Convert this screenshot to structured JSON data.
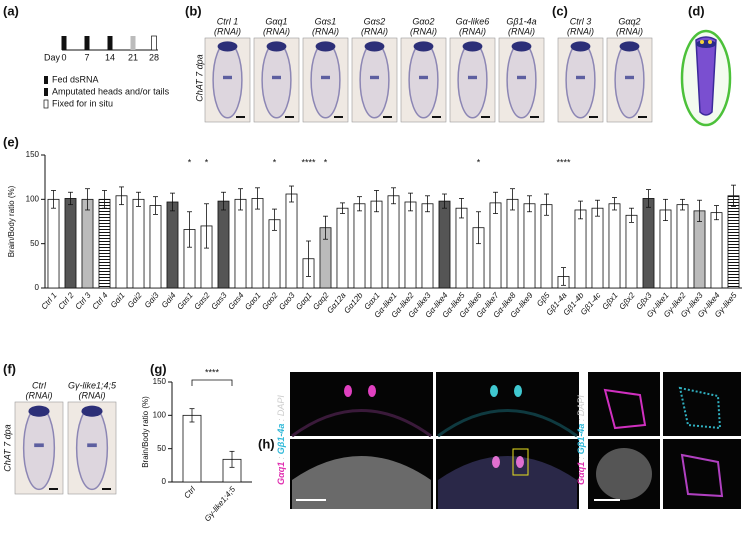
{
  "panel_labels": [
    "(a)",
    "(b)",
    "(c)",
    "(d)",
    "(e)",
    "(f)",
    "(g)",
    "(h)"
  ],
  "timeline": {
    "axis_label": "Day",
    "days": [
      "0",
      "7",
      "14",
      "21",
      "28"
    ],
    "legend": [
      "Fed dsRNA",
      "Amputated heads and/or tails",
      "Fixed for in situ"
    ]
  },
  "panel_b": {
    "side_label": "ChAT 7 dpa",
    "images": [
      [
        "Ctrl 1",
        "(RNAi)"
      ],
      [
        "Gαq1",
        "(RNAi)"
      ],
      [
        "Gαs1",
        "(RNAi)"
      ],
      [
        "Gαs2",
        "(RNAi)"
      ],
      [
        "Gαo2",
        "(RNAi)"
      ],
      [
        "Gα-like6",
        "(RNAi)"
      ],
      [
        "Gβ1-4a",
        "(RNAi)"
      ]
    ]
  },
  "panel_c": {
    "images": [
      [
        "Ctrl 3",
        "(RNAi)"
      ],
      [
        "Gαq2",
        "(RNAi)"
      ]
    ]
  },
  "panel_f": {
    "side_label": "ChAT 7 dpa",
    "images": [
      [
        "Ctrl",
        "(RNAi)"
      ],
      [
        "Gγ-like1;4;5",
        "(RNAi)"
      ]
    ]
  },
  "panel_h": {
    "stain_labels": [
      "Gαq1",
      " : ",
      "Gβ1-4a",
      " : DAPI"
    ]
  },
  "chart_data": [
    {
      "type": "bar",
      "ylabel": "Brain/Body ratio (%)",
      "categories": [
        "Ctrl 1",
        "Ctrl 2",
        "Ctrl 3",
        "Ctrl 4",
        "Gαi1",
        "Gαi2",
        "Gαi3",
        "Gαi4",
        "Gαs1",
        "Gαs2",
        "Gαs3",
        "Gαs4",
        "Gαo1",
        "Gαo2",
        "Gαo3",
        "Gαq1",
        "Gαq2",
        "Gα12a",
        "Gα12b",
        "Gαx1",
        "Gα-like1",
        "Gα-like2",
        "Gα-like3",
        "Gα-like4",
        "Gα-like5",
        "Gα-like6",
        "Gα-like7",
        "Gα-like8",
        "Gα-like9",
        "Gβ5",
        "Gβ1-4a",
        "Gβ1-4b",
        "Gβ1-4c",
        "Gβx1",
        "Gβx2",
        "Gβx3",
        "Gγ-like1",
        "Gγ-like2",
        "Gγ-like3",
        "Gγ-like4",
        "Gγ-like5"
      ],
      "values": [
        100,
        101,
        100,
        100,
        104,
        100,
        93,
        97,
        66,
        70,
        98,
        100,
        101,
        77,
        106,
        33,
        68,
        90,
        95,
        98,
        104,
        97,
        95,
        98,
        90,
        68,
        96,
        100,
        95,
        94,
        13,
        88,
        90,
        95,
        82,
        101,
        88,
        94,
        87,
        85,
        104
      ],
      "errors": [
        10,
        7,
        12,
        10,
        10,
        8,
        10,
        10,
        20,
        25,
        10,
        12,
        12,
        12,
        9,
        20,
        13,
        6,
        8,
        12,
        9,
        10,
        9,
        8,
        11,
        18,
        12,
        12,
        9,
        12,
        10,
        10,
        9,
        7,
        8,
        10,
        12,
        6,
        12,
        8,
        12
      ],
      "colors": [
        "#ffffff",
        "#555555",
        "#bbbbbb",
        "#ffffff",
        "#ffffff",
        "#ffffff",
        "#ffffff",
        "#555555",
        "#ffffff",
        "#ffffff",
        "#555555",
        "#ffffff",
        "#ffffff",
        "#ffffff",
        "#ffffff",
        "#ffffff",
        "#bbbbbb",
        "#ffffff",
        "#ffffff",
        "#ffffff",
        "#ffffff",
        "#ffffff",
        "#ffffff",
        "#555555",
        "#ffffff",
        "#ffffff",
        "#ffffff",
        "#ffffff",
        "#ffffff",
        "#ffffff",
        "#ffffff",
        "#ffffff",
        "#ffffff",
        "#ffffff",
        "#ffffff",
        "#555555",
        "#ffffff",
        "#ffffff",
        "#bbbbbb",
        "#ffffff",
        "#ffffff"
      ],
      "hatched": [
        false,
        false,
        false,
        true,
        false,
        false,
        false,
        false,
        false,
        false,
        false,
        false,
        false,
        false,
        false,
        false,
        false,
        false,
        false,
        false,
        false,
        false,
        false,
        false,
        false,
        false,
        false,
        false,
        false,
        false,
        false,
        false,
        false,
        false,
        false,
        false,
        false,
        false,
        false,
        false,
        true
      ],
      "significance": [
        null,
        null,
        null,
        null,
        null,
        null,
        null,
        null,
        "*",
        "*",
        null,
        null,
        null,
        "*",
        null,
        "****",
        "*",
        null,
        null,
        null,
        null,
        null,
        null,
        null,
        null,
        "*",
        null,
        null,
        null,
        null,
        "****",
        null,
        null,
        null,
        null,
        null,
        null,
        null,
        null,
        null,
        null
      ],
      "significance_color": "#e03030",
      "ylim": [
        0,
        150
      ],
      "yticks": [
        0,
        50,
        100,
        150
      ]
    },
    {
      "type": "bar",
      "ylabel": "Brain/Body ratio (%)",
      "categories": [
        "Ctrl",
        "Gγ-like1;4;5"
      ],
      "values": [
        100,
        34
      ],
      "errors": [
        10,
        12
      ],
      "colors": [
        "#ffffff",
        "#ffffff"
      ],
      "hatched": [
        false,
        false
      ],
      "bracket_label": "****",
      "significance_color": "#e03030",
      "ylim": [
        0,
        150
      ],
      "yticks": [
        0,
        50,
        100,
        150
      ]
    }
  ]
}
